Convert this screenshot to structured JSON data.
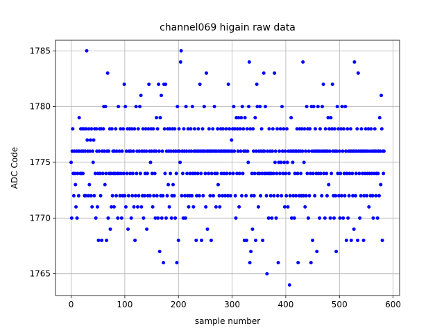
{
  "chart_data": {
    "type": "scatter",
    "title": "channel069 higain raw data",
    "x_label": "sample number",
    "y_label": "ADC Code",
    "xlim": [
      -29.15,
      612.15
    ],
    "ylim": [
      1763.05,
      1785.95
    ],
    "xticks": [
      0,
      100,
      200,
      300,
      400,
      500,
      600
    ],
    "yticks": [
      1765,
      1770,
      1775,
      1780,
      1785
    ],
    "grid": true,
    "series": [
      {
        "color": "#0000ff",
        "x": [
          0,
          1,
          2,
          3,
          4,
          5,
          6,
          7,
          8,
          9,
          10,
          11,
          12,
          13,
          14,
          15,
          16,
          17,
          18,
          19,
          20,
          21,
          22,
          23,
          24,
          25,
          26,
          27,
          28,
          29,
          30,
          31,
          32,
          33,
          34,
          35,
          36,
          37,
          38,
          39,
          40,
          41,
          42,
          43,
          44,
          45,
          46,
          47,
          48,
          49,
          50,
          51,
          52,
          53,
          54,
          55,
          56,
          57,
          58,
          59,
          60,
          61,
          62,
          63,
          64,
          65,
          66,
          67,
          68,
          69,
          70,
          71,
          72,
          73,
          74,
          75,
          76,
          77,
          78,
          79,
          80,
          81,
          82,
          83,
          84,
          85,
          86,
          87,
          88,
          89,
          90,
          91,
          92,
          93,
          94,
          95,
          96,
          97,
          98,
          99,
          100,
          101,
          102,
          103,
          104,
          105,
          106,
          107,
          108,
          109,
          110,
          111,
          112,
          113,
          114,
          115,
          116,
          117,
          118,
          119,
          120,
          121,
          122,
          123,
          124,
          125,
          126,
          127,
          128,
          129,
          130,
          131,
          132,
          133,
          134,
          135,
          136,
          137,
          138,
          139,
          140,
          141,
          142,
          143,
          144,
          145,
          146,
          147,
          148,
          149,
          150,
          151,
          152,
          153,
          154,
          155,
          156,
          157,
          158,
          159,
          160,
          161,
          162,
          163,
          164,
          165,
          166,
          167,
          168,
          169,
          170,
          171,
          172,
          173,
          174,
          175,
          176,
          177,
          178,
          179,
          180,
          181,
          182,
          183,
          184,
          185,
          186,
          187,
          188,
          189,
          190,
          191,
          192,
          193,
          194,
          195,
          196,
          197,
          198,
          199,
          200,
          201,
          202,
          203,
          204,
          205,
          206,
          207,
          208,
          209,
          210,
          211,
          212,
          213,
          214,
          215,
          216,
          217,
          218,
          219,
          220,
          221,
          222,
          223,
          224,
          225,
          226,
          227,
          228,
          229,
          230,
          231,
          232,
          233,
          234,
          235,
          236,
          237,
          238,
          239,
          240,
          241,
          242,
          243,
          244,
          245,
          246,
          247,
          248,
          249,
          250,
          251,
          252,
          253,
          254,
          255,
          256,
          257,
          258,
          259,
          260,
          261,
          262,
          263,
          264,
          265,
          266,
          267,
          268,
          269,
          270,
          271,
          272,
          273,
          274,
          275,
          276,
          277,
          278,
          279,
          280,
          281,
          282,
          283,
          284,
          285,
          286,
          287,
          288,
          289,
          290,
          291,
          292,
          293,
          294,
          295,
          296,
          297,
          298,
          299,
          300,
          301,
          302,
          303,
          304,
          305,
          306,
          307,
          308,
          309,
          310,
          311,
          312,
          313,
          314,
          315,
          316,
          317,
          318,
          319,
          320,
          321,
          322,
          323,
          324,
          325,
          326,
          327,
          328,
          329,
          330,
          331,
          332,
          333,
          334,
          335,
          336,
          337,
          338,
          339,
          340,
          341,
          342,
          343,
          344,
          345,
          346,
          347,
          348,
          349,
          350,
          351,
          352,
          353,
          354,
          355,
          356,
          357,
          358,
          359,
          360,
          361,
          362,
          363,
          364,
          365,
          366,
          367,
          368,
          369,
          370,
          371,
          372,
          373,
          374,
          375,
          376,
          377,
          378,
          379,
          380,
          381,
          382,
          383,
          384,
          385,
          386,
          387,
          388,
          389,
          390,
          391,
          392,
          393,
          394,
          395,
          396,
          397,
          398,
          399,
          400,
          401,
          402,
          403,
          404,
          405,
          406,
          407,
          408,
          409,
          410,
          411,
          412,
          413,
          414,
          415,
          416,
          417,
          418,
          419,
          420,
          421,
          422,
          423,
          424,
          425,
          426,
          427,
          428,
          429,
          430,
          431,
          432,
          433,
          434,
          435,
          436,
          437,
          438,
          439,
          440,
          441,
          442,
          443,
          444,
          445,
          446,
          447,
          448,
          449,
          450,
          451,
          452,
          453,
          454,
          455,
          456,
          457,
          458,
          459,
          460,
          461,
          462,
          463,
          464,
          465,
          466,
          467,
          468,
          469,
          470,
          471,
          472,
          473,
          474,
          475,
          476,
          477,
          478,
          479,
          480,
          481,
          482,
          483,
          484,
          485,
          486,
          487,
          488,
          489,
          490,
          491,
          492,
          493,
          494,
          495,
          496,
          497,
          498,
          499,
          500,
          501,
          502,
          503,
          504,
          505,
          506,
          507,
          508,
          509,
          510,
          511,
          512,
          513,
          514,
          515,
          516,
          517,
          518,
          519,
          520,
          521,
          522,
          523,
          524,
          525,
          526,
          527,
          528,
          529,
          530,
          531,
          532,
          533,
          534,
          535,
          536,
          537,
          538,
          539,
          540,
          541,
          542,
          543,
          544,
          545,
          546,
          547,
          548,
          549,
          550,
          551,
          552,
          553,
          554,
          555,
          556,
          557,
          558,
          559,
          560,
          561,
          562,
          563,
          564,
          565,
          566,
          567,
          568,
          569,
          570,
          571,
          572,
          573,
          574,
          575,
          576,
          577,
          578,
          579,
          580,
          581,
          582,
          583
        ],
        "values": [
          1775,
          1770,
          1776,
          1778,
          1774,
          1772,
          1776,
          1774,
          1773,
          1771,
          1776,
          1770,
          1774,
          1776,
          1772,
          1779,
          1776,
          1774,
          1778,
          1774,
          1776,
          1778,
          1774,
          1776,
          1778,
          1772,
          1776,
          1772,
          1778,
          1785,
          1777,
          1776,
          1772,
          1778,
          1773,
          1776,
          1777,
          1772,
          1778,
          1771,
          1776,
          1775,
          1777,
          1772,
          1778,
          1774,
          1770,
          1778,
          1776,
          1771,
          1774,
          1768,
          1776,
          1778,
          1774,
          1772,
          1778,
          1768,
          1776,
          1774,
          1778,
          1780,
          1776,
          1773,
          1780,
          1774,
          1768,
          1776,
          1783,
          1770,
          1776,
          1774,
          1778,
          1769,
          1774,
          1771,
          1778,
          1772,
          1776,
          1774,
          1771,
          1776,
          1774,
          1778,
          1772,
          1776,
          1774,
          1770,
          1780,
          1774,
          1776,
          1772,
          1778,
          1774,
          1770,
          1776,
          1772,
          1778,
          1774,
          1782,
          1772,
          1780,
          1771,
          1776,
          1774,
          1778,
          1769,
          1772,
          1776,
          1778,
          1774,
          1776,
          1770,
          1778,
          1772,
          1774,
          1776,
          1771,
          1778,
          1768,
          1772,
          1780,
          1774,
          1776,
          1771,
          1778,
          1772,
          1776,
          1780,
          1774,
          1781,
          1771,
          1776,
          1772,
          1778,
          1770,
          1776,
          1772,
          1774,
          1778,
          1776,
          1769,
          1774,
          1772,
          1778,
          1782,
          1776,
          1772,
          1775,
          1778,
          1776,
          1774,
          1771,
          1778,
          1772,
          1776,
          1774,
          1770,
          1776,
          1779,
          1772,
          1778,
          1770,
          1782,
          1776,
          1767,
          1779,
          1772,
          1781,
          1770,
          1776,
          1772,
          1766,
          1782,
          1778,
          1774,
          1782,
          1770,
          1776,
          1772,
          1778,
          1773,
          1776,
          1771,
          1778,
          1774,
          1776,
          1770,
          1772,
          1778,
          1773,
          1776,
          1772,
          1778,
          1770,
          1776,
          1774,
          1766,
          1780,
          1776,
          1768,
          1778,
          1776,
          1775,
          1784,
          1785,
          1772,
          1776,
          1774,
          1770,
          1778,
          1776,
          1772,
          1770,
          1780,
          1776,
          1774,
          1772,
          1778,
          1771,
          1776,
          1772,
          1774,
          1778,
          1776,
          1772,
          1780,
          1774,
          1771,
          1776,
          1778,
          1774,
          1776,
          1768,
          1772,
          1776,
          1774,
          1778,
          1776,
          1772,
          1782,
          1776,
          1774,
          1768,
          1776,
          1778,
          1772,
          1776,
          1780,
          1776,
          1774,
          1771,
          1783,
          1776,
          1769,
          1776,
          1774,
          1778,
          1776,
          1772,
          1776,
          1768,
          1774,
          1776,
          1778,
          1772,
          1776,
          1780,
          1774,
          1776,
          1771,
          1776,
          1774,
          1778,
          1773,
          1776,
          1772,
          1771,
          1776,
          1778,
          1774,
          1776,
          1772,
          1778,
          1776,
          1774,
          1776,
          1772,
          1776,
          1778,
          1774,
          1776,
          1772,
          1782,
          1776,
          1778,
          1774,
          1772,
          1776,
          1777,
          1776,
          1778,
          1774,
          1780,
          1776,
          1778,
          1772,
          1770,
          1779,
          1774,
          1778,
          1776,
          1779,
          1771,
          1774,
          1778,
          1776,
          1779,
          1772,
          1780,
          1774,
          1778,
          1776,
          1768,
          1779,
          1776,
          1772,
          1768,
          1778,
          1776,
          1775,
          1780,
          1784,
          1766,
          1778,
          1767,
          1772,
          1774,
          1769,
          1778,
          1776,
          1772,
          1774,
          1779,
          1768,
          1776,
          1782,
          1780,
          1774,
          1771,
          1776,
          1774,
          1780,
          1772,
          1776,
          1778,
          1774,
          1768,
          1776,
          1783,
          1776,
          1774,
          1780,
          1774,
          1772,
          1765,
          1776,
          1774,
          1770,
          1778,
          1774,
          1776,
          1772,
          1774,
          1770,
          1776,
          1778,
          1774,
          1772,
          1783,
          1775,
          1776,
          1770,
          1774,
          1778,
          1772,
          1766,
          1775,
          1776,
          1774,
          1778,
          1775,
          1772,
          1780,
          1776,
          1774,
          1778,
          1775,
          1771,
          1776,
          1774,
          1772,
          1778,
          1775,
          1771,
          1776,
          1774,
          1764,
          1772,
          1776,
          1779,
          1770,
          1776,
          1775,
          1772,
          1776,
          1770,
          1774,
          1776,
          1772,
          1776,
          1778,
          1774,
          1766,
          1776,
          1772,
          1778,
          1776,
          1774,
          1772,
          1778,
          1776,
          1784,
          1772,
          1775,
          1778,
          1771,
          1776,
          1772,
          1780,
          1774,
          1778,
          1770,
          1776,
          1772,
          1778,
          1774,
          1766,
          1780,
          1776,
          1768,
          1774,
          1780,
          1776,
          1772,
          1778,
          1776,
          1774,
          1767,
          1776,
          1780,
          1774,
          1776,
          1770,
          1778,
          1774,
          1776,
          1772,
          1780,
          1776,
          1782,
          1774,
          1776,
          1770,
          1778,
          1776,
          1774,
          1772,
          1776,
          1779,
          1773,
          1778,
          1776,
          1770,
          1779,
          1774,
          1778,
          1782,
          1776,
          1772,
          1770,
          1778,
          1776,
          1772,
          1767,
          1776,
          1780,
          1774,
          1778,
          1772,
          1776,
          1770,
          1774,
          1778,
          1772,
          1780,
          1776,
          1770,
          1778,
          1774,
          1772,
          1780,
          1776,
          1768,
          1774,
          1778,
          1770,
          1776,
          1772,
          1774,
          1776,
          1778,
          1768,
          1776,
          1774,
          1772,
          1776,
          1769,
          1784,
          1776,
          1772,
          1774,
          1776,
          1778,
          1768,
          1783,
          1776,
          1774,
          1770,
          1776,
          1772,
          1778,
          1776,
          1774,
          1776,
          1768,
          1772,
          1776,
          1774,
          1778,
          1776,
          1772,
          1774,
          1776,
          1778,
          1771,
          1774,
          1776,
          1772,
          1778,
          1774,
          1776,
          1772,
          1770,
          1776,
          1774,
          1778,
          1776,
          1772,
          1774,
          1776,
          1770,
          1774,
          1776,
          1772,
          1779,
          1776,
          1773,
          1781,
          1778,
          1768,
          1776,
          1774,
          1776
        ]
      }
    ]
  }
}
